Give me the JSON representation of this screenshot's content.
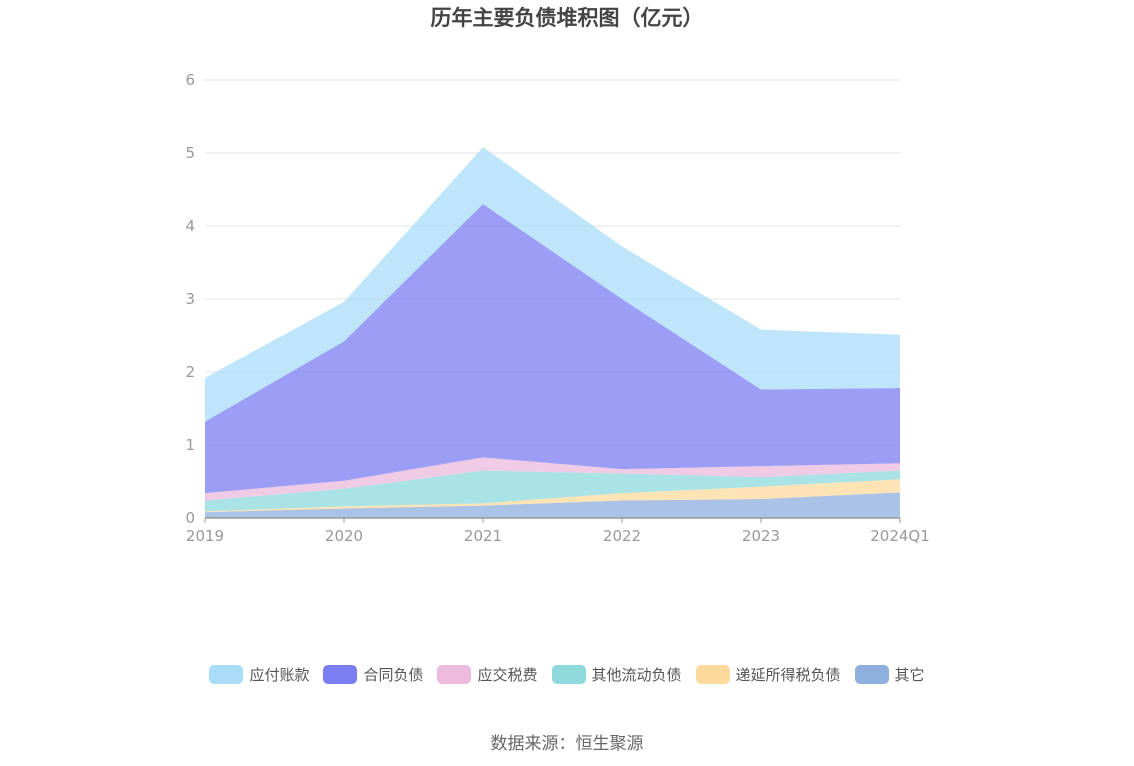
{
  "chart_data": {
    "type": "area",
    "stacked": true,
    "title": "历年主要负债堆积图（亿元）",
    "categories": [
      "2019",
      "2020",
      "2021",
      "2022",
      "2023",
      "2024Q1"
    ],
    "ylim": [
      0,
      6
    ],
    "yticks": [
      "0",
      "1",
      "2",
      "3",
      "4",
      "5",
      "6"
    ],
    "grid": true,
    "legend_position": "bottom",
    "series": [
      {
        "name": "其它",
        "color": "#8eaedd",
        "values": [
          0.08,
          0.13,
          0.17,
          0.24,
          0.26,
          0.35
        ]
      },
      {
        "name": "递延所得税负债",
        "color": "#fdd99b",
        "values": [
          0.01,
          0.03,
          0.03,
          0.1,
          0.17,
          0.18
        ]
      },
      {
        "name": "其他流动负债",
        "color": "#8dd9dc",
        "values": [
          0.15,
          0.24,
          0.45,
          0.27,
          0.13,
          0.12
        ]
      },
      {
        "name": "应交税费",
        "color": "#ebbadc",
        "values": [
          0.1,
          0.11,
          0.18,
          0.06,
          0.15,
          0.1
        ]
      },
      {
        "name": "合同负债",
        "color": "#7b7ef3",
        "values": [
          0.98,
          1.91,
          3.47,
          2.33,
          1.05,
          1.03
        ]
      },
      {
        "name": "应付账款",
        "color": "#a8dcf7",
        "values": [
          0.6,
          0.54,
          0.78,
          0.72,
          0.82,
          0.73
        ]
      }
    ]
  },
  "legend": [
    {
      "label": "应付账款",
      "color": "#a8dcf7"
    },
    {
      "label": "合同负债",
      "color": "#7b7ef3"
    },
    {
      "label": "应交税费",
      "color": "#ebbadc"
    },
    {
      "label": "其他流动负债",
      "color": "#8dd9dc"
    },
    {
      "label": "递延所得税负债",
      "color": "#fdd99b"
    },
    {
      "label": "其它",
      "color": "#8eaedd"
    }
  ],
  "source_text": "数据来源：恒生聚源"
}
